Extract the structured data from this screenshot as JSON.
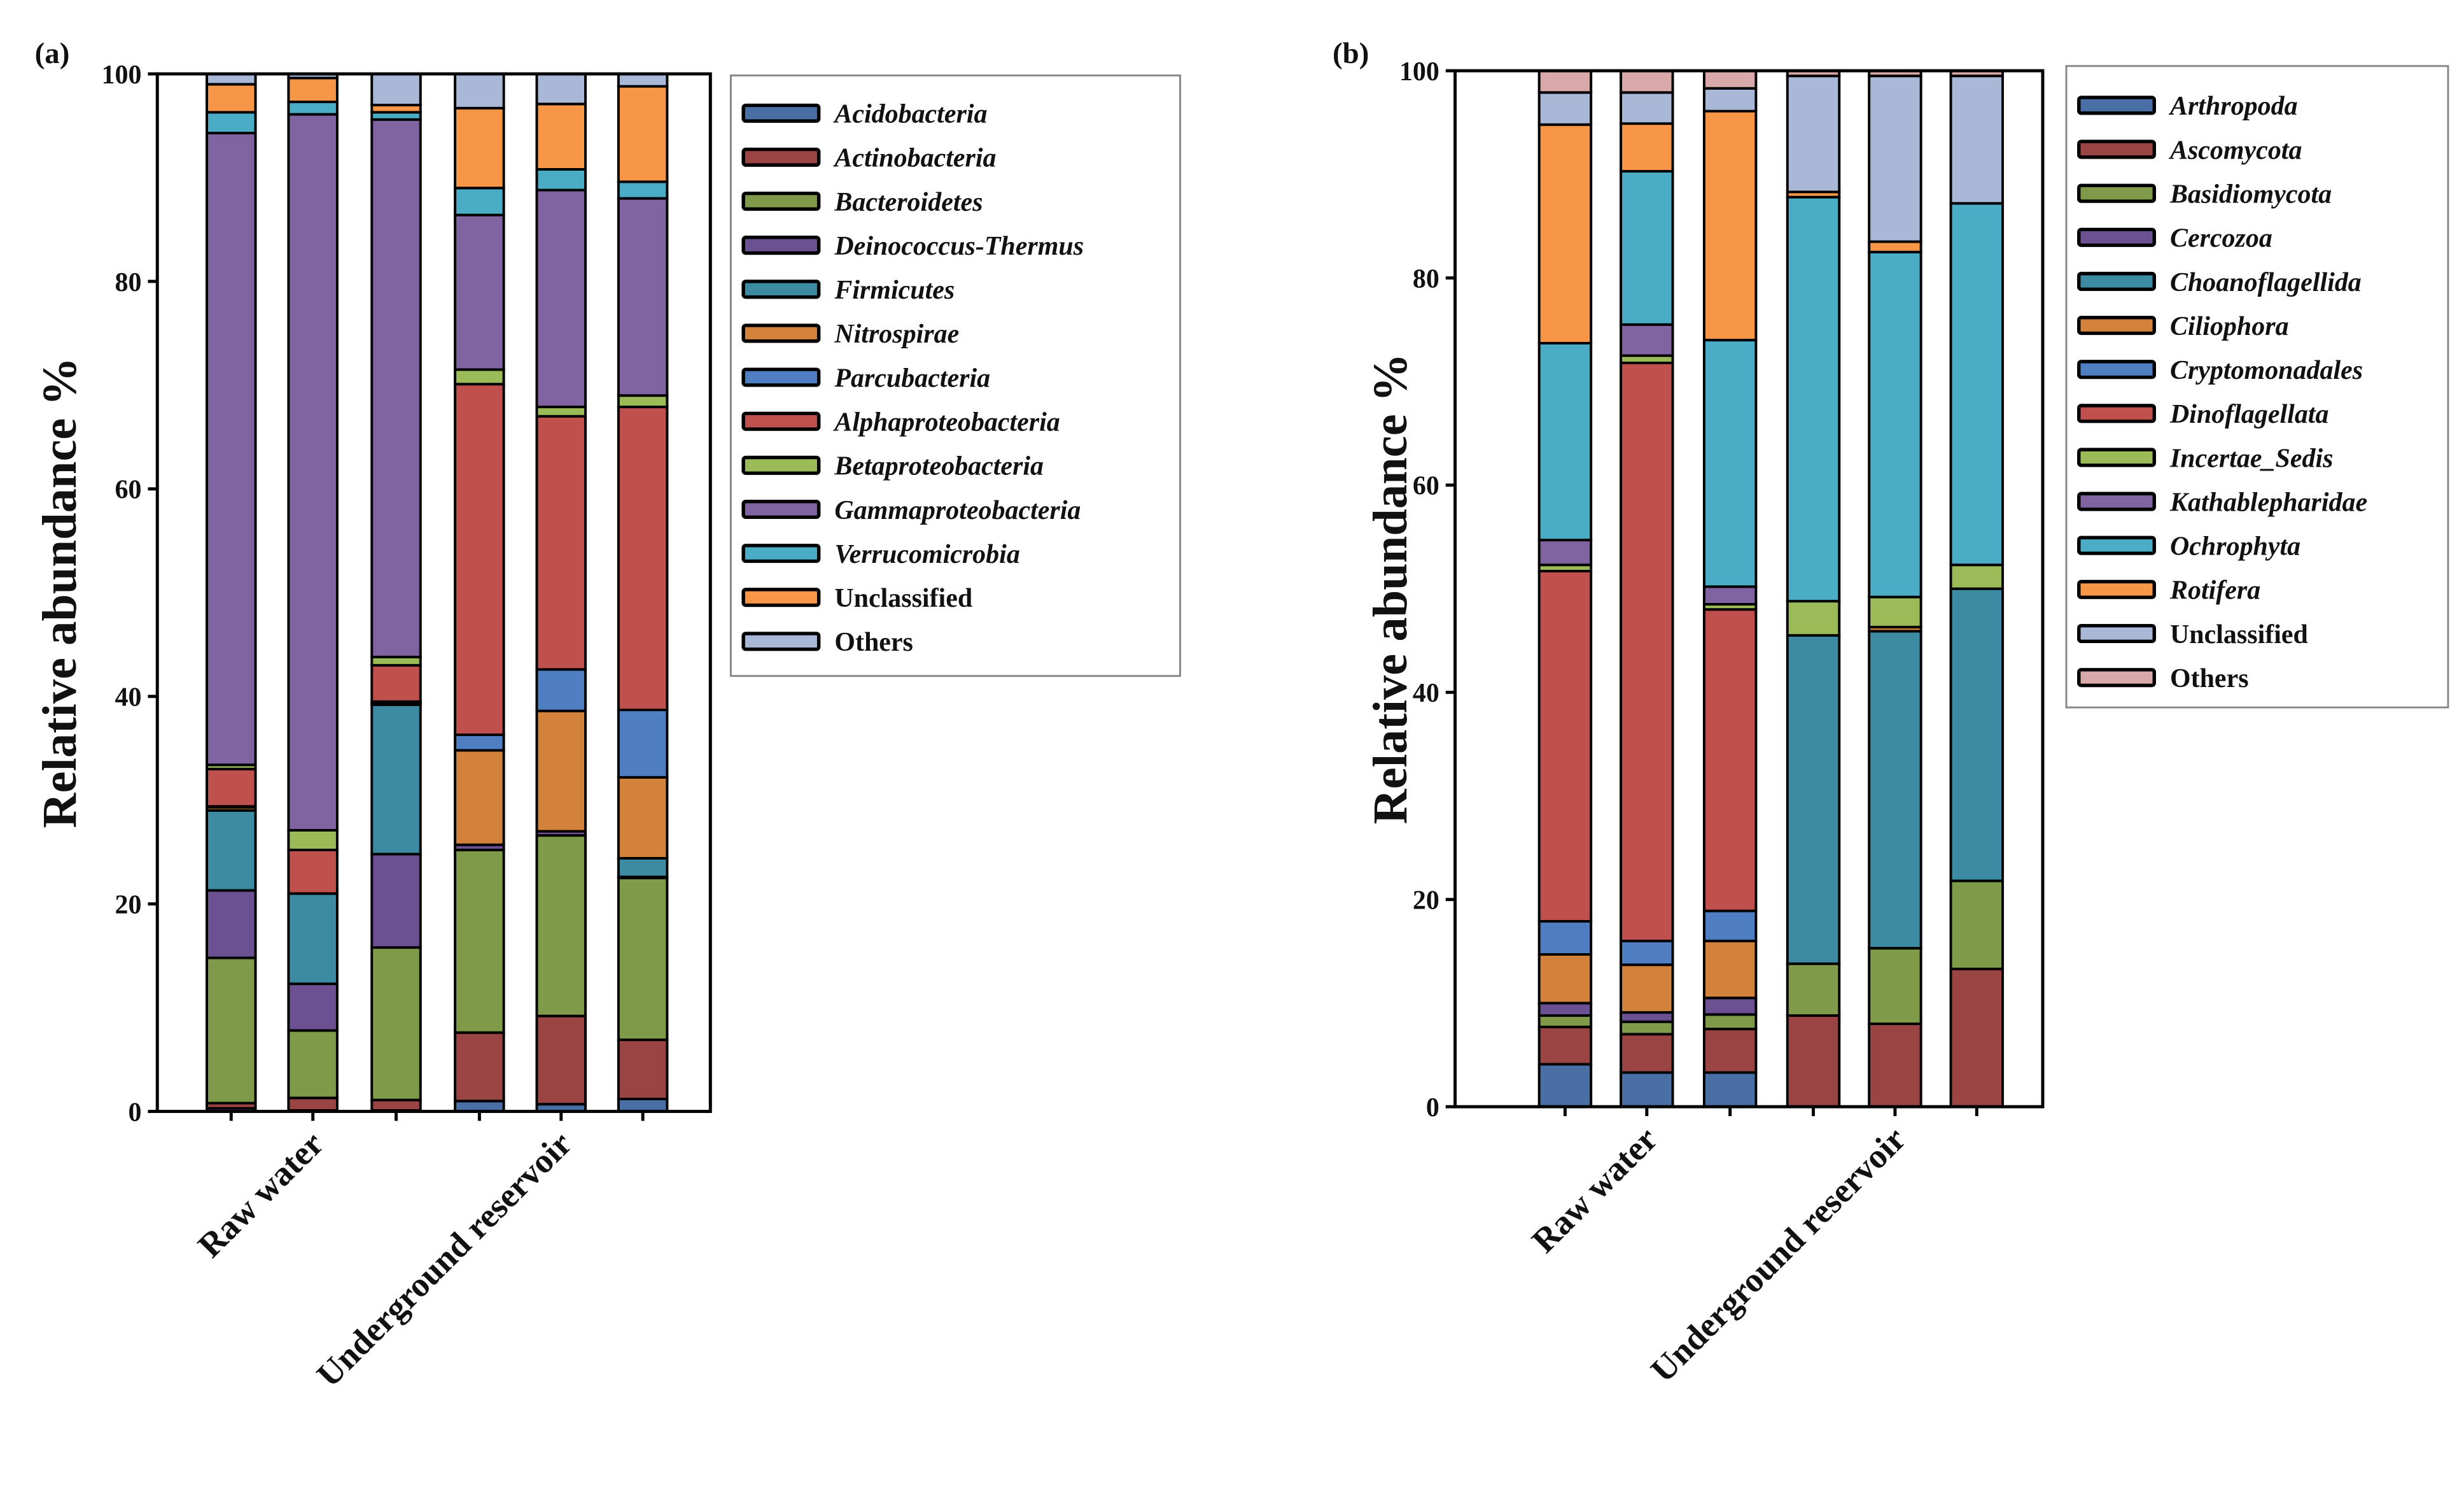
{
  "chart_data": [
    {
      "type": "bar",
      "stacked": true,
      "panel_label": "(a)",
      "ylabel": "Relative abundance %",
      "xlabel": "",
      "ylim": [
        0,
        100
      ],
      "yticks": [
        "0",
        "20",
        "40",
        "60",
        "80",
        "100"
      ],
      "group_labels": [
        "Raw water",
        "Underground reservoir"
      ],
      "bars_per_group": 3,
      "legend_position": "right",
      "series": [
        {
          "name": "Acidobacteria",
          "italic": true,
          "color": "#4a6fa5",
          "values": [
            0.3,
            0.1,
            0.1,
            1.0,
            0.7,
            1.2
          ]
        },
        {
          "name": "Actinobacteria",
          "italic": true,
          "color": "#9b4444",
          "values": [
            0.5,
            1.2,
            1.0,
            6.6,
            8.5,
            5.7
          ]
        },
        {
          "name": "Bacteroidetes",
          "italic": true,
          "color": "#7f9a48",
          "values": [
            14.0,
            6.5,
            14.7,
            17.6,
            17.4,
            15.6
          ]
        },
        {
          "name": "Deinococcus-Thermus",
          "italic": true,
          "color": "#6b5192",
          "values": [
            6.5,
            4.5,
            9.0,
            0.5,
            0.4,
            0.1
          ]
        },
        {
          "name": "Firmicutes",
          "italic": true,
          "color": "#3d8ba3",
          "values": [
            7.7,
            8.7,
            14.4,
            0,
            0,
            1.8
          ]
        },
        {
          "name": "Nitrospirae",
          "italic": true,
          "color": "#d2823a",
          "values": [
            0.3,
            0,
            0.2,
            9.1,
            11.6,
            7.8
          ]
        },
        {
          "name": "Parcubacteria",
          "italic": true,
          "color": "#4f7fc2",
          "values": [
            0.1,
            0,
            0.1,
            1.5,
            4.0,
            6.5
          ]
        },
        {
          "name": "Alphaproteobacteria",
          "italic": true,
          "color": "#c0504d",
          "values": [
            3.6,
            4.2,
            3.5,
            33.8,
            24.4,
            29.2
          ]
        },
        {
          "name": "Betaproteobacteria",
          "italic": true,
          "color": "#9bbb59",
          "values": [
            0.4,
            1.9,
            0.8,
            1.4,
            0.9,
            1.1
          ]
        },
        {
          "name": "Gammaproteobacteria",
          "italic": true,
          "color": "#8064a2",
          "values": [
            60.9,
            69.0,
            51.8,
            14.9,
            20.9,
            19.0
          ]
        },
        {
          "name": "Verrucomicrobia",
          "italic": true,
          "color": "#4bacc6",
          "values": [
            2.0,
            1.2,
            0.7,
            2.6,
            2.0,
            1.6
          ]
        },
        {
          "name": "Unclassified",
          "italic": false,
          "color": "#f79646",
          "values": [
            2.7,
            2.3,
            0.7,
            7.7,
            6.3,
            9.2
          ]
        },
        {
          "name": "Others",
          "italic": false,
          "color": "#aab8d8",
          "values": [
            1.0,
            0.4,
            3.0,
            3.3,
            2.9,
            1.2
          ]
        }
      ]
    },
    {
      "type": "bar",
      "stacked": true,
      "panel_label": "(b)",
      "ylabel": "Relative abundance %",
      "xlabel": "",
      "ylim": [
        0,
        100
      ],
      "yticks": [
        "0",
        "20",
        "40",
        "60",
        "80",
        "100"
      ],
      "group_labels": [
        "Raw water",
        "Underground reservoir"
      ],
      "bars_per_group": 3,
      "legend_position": "right",
      "series": [
        {
          "name": "Arthropoda",
          "italic": true,
          "color": "#4a6fa5",
          "values": [
            4.1,
            3.3,
            3.3,
            0,
            0,
            0
          ]
        },
        {
          "name": "Ascomycota",
          "italic": true,
          "color": "#9b4444",
          "values": [
            3.6,
            3.7,
            4.2,
            8.8,
            8.0,
            13.3
          ]
        },
        {
          "name": "Basidiomycota",
          "italic": true,
          "color": "#7f9a48",
          "values": [
            1.1,
            1.2,
            1.4,
            5.0,
            7.3,
            8.5
          ]
        },
        {
          "name": "Cercozoa",
          "italic": true,
          "color": "#6b5192",
          "values": [
            1.2,
            0.9,
            1.6,
            0,
            0,
            0
          ]
        },
        {
          "name": "Choanoflagellida",
          "italic": true,
          "color": "#3d8ba3",
          "values": [
            0,
            0,
            0,
            31.7,
            30.6,
            28.2
          ]
        },
        {
          "name": "Ciliophora",
          "italic": true,
          "color": "#d2823a",
          "values": [
            4.7,
            4.6,
            5.5,
            0,
            0.4,
            0
          ]
        },
        {
          "name": "Cryptomonadales",
          "italic": true,
          "color": "#4f7fc2",
          "values": [
            3.2,
            2.3,
            2.9,
            0,
            0,
            0
          ]
        },
        {
          "name": "Dinoflagellata",
          "italic": true,
          "color": "#c0504d",
          "values": [
            33.8,
            55.8,
            29.1,
            0,
            0,
            0
          ]
        },
        {
          "name": "Incertae_Sedis",
          "italic": true,
          "color": "#9bbb59",
          "values": [
            0.6,
            0.7,
            0.5,
            3.3,
            2.9,
            2.3
          ]
        },
        {
          "name": "Kathablepharidae",
          "italic": true,
          "color": "#8064a2",
          "values": [
            2.4,
            3.0,
            1.7,
            0,
            0,
            0
          ]
        },
        {
          "name": "Ochrophyta",
          "italic": true,
          "color": "#4bacc6",
          "values": [
            19.0,
            14.8,
            23.8,
            39.0,
            33.3,
            34.9
          ]
        },
        {
          "name": "Rotifera",
          "italic": true,
          "color": "#f79646",
          "values": [
            21.1,
            4.6,
            22.1,
            0.5,
            1.0,
            0
          ]
        },
        {
          "name": "Unclassified",
          "italic": false,
          "color": "#aab8d8",
          "values": [
            3.1,
            3.0,
            2.2,
            11.2,
            16.0,
            12.3
          ]
        },
        {
          "name": "Others",
          "italic": false,
          "color": "#d9a8a8",
          "values": [
            2.1,
            2.1,
            1.7,
            0.5,
            0.5,
            0.5
          ]
        }
      ]
    }
  ]
}
